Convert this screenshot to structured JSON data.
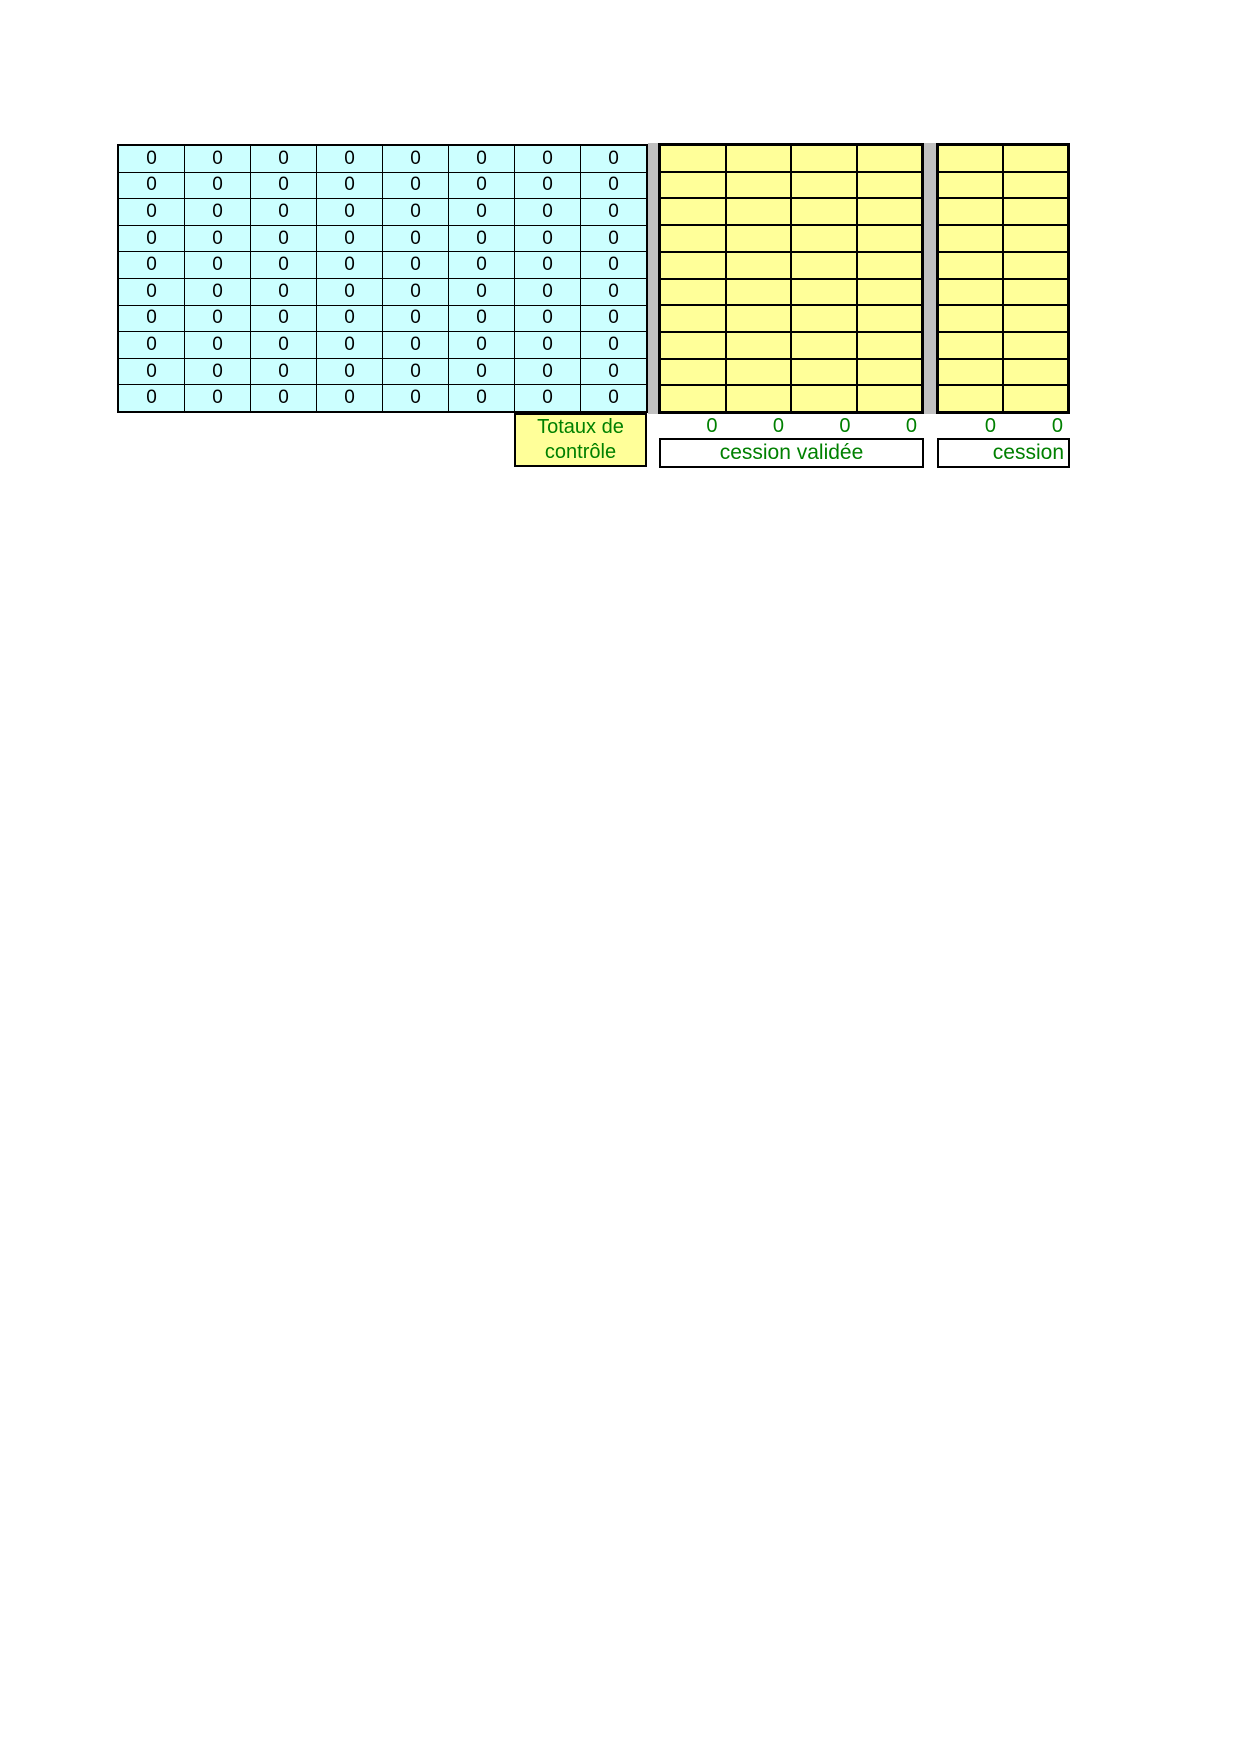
{
  "page": {
    "background": "#FFFFFF"
  },
  "control_table": {
    "rows": 10,
    "cols": 8,
    "cell_value": "0",
    "bg_color": "#CCFFFF"
  },
  "validated_table": {
    "rows": 10,
    "cols": 4,
    "cell_value": "",
    "bg_color": "#FFFF99"
  },
  "second_table": {
    "rows": 10,
    "cols": 2,
    "cell_value": "",
    "bg_color": "#FFFF99"
  },
  "separators": {
    "color": "#C0C0C0"
  },
  "totals_box": {
    "line1": "Totaux de",
    "line2": "contrôle",
    "bg_color": "#FFFF99",
    "text_color": "#008000"
  },
  "validated_totals": {
    "values": [
      "0",
      "0",
      "0",
      "0"
    ]
  },
  "second_totals": {
    "values": [
      "0",
      "0"
    ]
  },
  "captions": {
    "validated": "cession validée",
    "second": "cession"
  },
  "colors": {
    "green_text": "#008000",
    "grid_line": "#000000"
  }
}
